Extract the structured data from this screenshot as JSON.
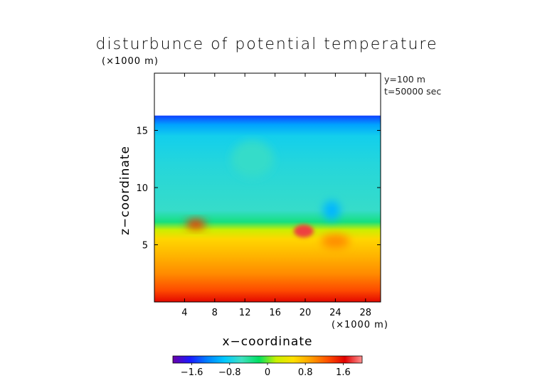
{
  "chart_data": {
    "type": "heatmap",
    "title": "disturbunce of potential temperature",
    "x_unit_label": "(×1000 m)",
    "z_unit_label": "(×1000 m)",
    "xlabel": "x−coordinate",
    "ylabel": "z−coordinate",
    "xlim": [
      0,
      30
    ],
    "ylim": [
      0,
      20
    ],
    "x_ticks": [
      4,
      8,
      12,
      16,
      20,
      24,
      28
    ],
    "x_tick_labels": [
      "4",
      "8",
      "12",
      "16",
      "20",
      "24",
      "28"
    ],
    "y_ticks": [
      5,
      10,
      15
    ],
    "y_tick_labels": [
      "5",
      "10",
      "15"
    ],
    "annotations": [
      "y=100 m",
      "t=50000 sec"
    ],
    "data_top_z": 16.3,
    "colorbar": {
      "range": [
        -2.0,
        2.0
      ],
      "ticks": [
        -1.6,
        -0.8,
        0,
        0.8,
        1.6
      ],
      "tick_labels": [
        "−1.6",
        "−0.8",
        "0",
        "0.8",
        "1.6"
      ],
      "colors": [
        "#6a00a8",
        "#1a1aff",
        "#0080ff",
        "#00c8ff",
        "#40e0c0",
        "#00e060",
        "#c8f000",
        "#ffe000",
        "#ffa000",
        "#ff5000",
        "#e00000",
        "#ff9090"
      ]
    },
    "field_profile": [
      {
        "z": 0.0,
        "value": 1.6
      },
      {
        "z": 1.0,
        "value": 1.3
      },
      {
        "z": 2.5,
        "value": 1.0
      },
      {
        "z": 4.0,
        "value": 0.8
      },
      {
        "z": 5.5,
        "value": 0.6
      },
      {
        "z": 6.3,
        "value": 0.2
      },
      {
        "z": 7.0,
        "value": -0.3
      },
      {
        "z": 8.0,
        "value": -0.6
      },
      {
        "z": 12.0,
        "value": -0.7
      },
      {
        "z": 14.5,
        "value": -0.8
      },
      {
        "z": 15.5,
        "value": -1.1
      },
      {
        "z": 16.3,
        "value": -1.5
      }
    ],
    "features": [
      {
        "x": 5.5,
        "z": 6.8,
        "value": 1.4
      },
      {
        "x": 19.8,
        "z": 6.2,
        "value": 1.8
      },
      {
        "x": 24.0,
        "z": 5.3,
        "value": 1.0
      },
      {
        "x": 13.0,
        "z": 12.5,
        "value": -0.6
      },
      {
        "x": 23.5,
        "z": 8.0,
        "value": -1.0
      }
    ]
  }
}
